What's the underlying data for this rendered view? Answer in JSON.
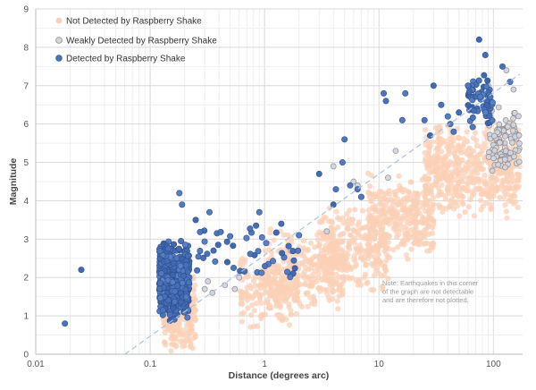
{
  "chart_data": {
    "type": "scatter",
    "xscale": "log",
    "xlim": [
      0.01,
      180
    ],
    "ylim": [
      0,
      9
    ],
    "xlabel": "Distance (degrees arc)",
    "ylabel": "Magnitude",
    "xticks": [
      {
        "value": 0.01,
        "label": "0.01"
      },
      {
        "value": 0.1,
        "label": "0.1"
      },
      {
        "value": 1,
        "label": "1"
      },
      {
        "value": 10,
        "label": "10"
      },
      {
        "value": 100,
        "label": "100"
      }
    ],
    "yticks": [
      0,
      1,
      2,
      3,
      4,
      5,
      6,
      7,
      8,
      9
    ],
    "grid": true,
    "legend_position": "top-left",
    "legend": [
      {
        "label": "Not Detected by Raspberry Shake",
        "color": "#fbd0b5"
      },
      {
        "label": "Weakly Detected by Raspberry Shake",
        "color": "#d4d4dc"
      },
      {
        "label": "Detected by Raspberry Shake",
        "color": "#4a72b8"
      }
    ],
    "threshold_line": {
      "style": "dashed",
      "color": "#a9c4df",
      "points": [
        [
          0.06,
          0
        ],
        [
          170,
          7.3
        ]
      ]
    },
    "annotation": "Note: Earthquakes in this corner of the graph are not detectable and are therefore not plotted.",
    "series": [
      {
        "name": "Not Detected by Raspberry Shake",
        "color": "#fbd0b5",
        "clusters": [
          {
            "x_range": [
              0.13,
              0.25
            ],
            "y_range": [
              0,
              2.2
            ],
            "count": 300
          },
          {
            "x_range": [
              0.6,
              2.0
            ],
            "y_range": [
              0.6,
              2.6
            ],
            "count": 180
          },
          {
            "x_range": [
              1.0,
              5.0
            ],
            "y_range": [
              1.0,
              3.4
            ],
            "count": 300
          },
          {
            "x_range": [
              3.0,
              12.0
            ],
            "y_range": [
              1.6,
              4.0
            ],
            "count": 280
          },
          {
            "x_range": [
              8.0,
              30.0
            ],
            "y_range": [
              2.4,
              4.8
            ],
            "count": 320
          },
          {
            "x_range": [
              25.0,
              170.0
            ],
            "y_range": [
              3.5,
              6.2
            ],
            "count": 520
          }
        ],
        "points": [
          {
            "x": 0.16,
            "y": 0.9
          },
          {
            "x": 0.19,
            "y": 0.5
          },
          {
            "x": 0.21,
            "y": 1.2
          },
          {
            "x": 2.0,
            "y": 2.8
          },
          {
            "x": 4.0,
            "y": 3.1
          },
          {
            "x": 8.0,
            "y": 3.3
          },
          {
            "x": 20.0,
            "y": 4.0
          },
          {
            "x": 60.0,
            "y": 5.0
          },
          {
            "x": 120.0,
            "y": 5.9
          }
        ]
      },
      {
        "name": "Weakly Detected by Raspberry Shake",
        "color": "#d4d4dc",
        "clusters": [
          {
            "x_range": [
              90.0,
              170.0
            ],
            "y_range": [
              4.6,
              6.5
            ],
            "count": 90
          }
        ],
        "points": [
          {
            "x": 0.3,
            "y": 1.7
          },
          {
            "x": 0.32,
            "y": 1.9
          },
          {
            "x": 0.35,
            "y": 1.6
          },
          {
            "x": 0.45,
            "y": 1.8
          },
          {
            "x": 0.55,
            "y": 1.7
          },
          {
            "x": 0.6,
            "y": 2.0
          },
          {
            "x": 1.7,
            "y": 2.7
          },
          {
            "x": 3.5,
            "y": 3.2
          },
          {
            "x": 4.0,
            "y": 4.9
          },
          {
            "x": 6.0,
            "y": 4.5
          },
          {
            "x": 6.5,
            "y": 4.4
          },
          {
            "x": 7.0,
            "y": 4.1
          },
          {
            "x": 12.0,
            "y": 4.6
          },
          {
            "x": 14.0,
            "y": 5.3
          },
          {
            "x": 90.0,
            "y": 7.0
          },
          {
            "x": 130.0,
            "y": 7.4
          },
          {
            "x": 150.0,
            "y": 6.9
          }
        ]
      },
      {
        "name": "Detected by Raspberry Shake",
        "color": "#4a72b8",
        "clusters": [
          {
            "x_range": [
              0.12,
              0.22
            ],
            "y_range": [
              0.8,
              3.0
            ],
            "count": 420
          },
          {
            "x_range": [
              0.25,
              2.0
            ],
            "y_range": [
              1.8,
              3.6
            ],
            "count": 45
          },
          {
            "x_range": [
              60.0,
              100.0
            ],
            "y_range": [
              5.9,
              7.4
            ],
            "count": 55
          }
        ],
        "points": [
          {
            "x": 0.018,
            "y": 0.8
          },
          {
            "x": 0.025,
            "y": 2.2
          },
          {
            "x": 0.18,
            "y": 4.2
          },
          {
            "x": 0.19,
            "y": 3.9
          },
          {
            "x": 0.25,
            "y": 3.5
          },
          {
            "x": 0.33,
            "y": 3.7
          },
          {
            "x": 0.9,
            "y": 3.7
          },
          {
            "x": 1.4,
            "y": 3.4
          },
          {
            "x": 2.0,
            "y": 3.1
          },
          {
            "x": 3.0,
            "y": 4.7
          },
          {
            "x": 4.0,
            "y": 3.9
          },
          {
            "x": 4.2,
            "y": 4.3
          },
          {
            "x": 4.8,
            "y": 5.0
          },
          {
            "x": 5.0,
            "y": 5.6
          },
          {
            "x": 5.6,
            "y": 4.4
          },
          {
            "x": 6.5,
            "y": 4.3
          },
          {
            "x": 7.0,
            "y": 4.1
          },
          {
            "x": 11.0,
            "y": 6.8
          },
          {
            "x": 11.5,
            "y": 6.6
          },
          {
            "x": 16.0,
            "y": 6.1
          },
          {
            "x": 17.0,
            "y": 6.8
          },
          {
            "x": 25.0,
            "y": 6.1
          },
          {
            "x": 28.0,
            "y": 5.7
          },
          {
            "x": 30.0,
            "y": 7.0
          },
          {
            "x": 35.0,
            "y": 6.5
          },
          {
            "x": 40.0,
            "y": 6.2
          },
          {
            "x": 42.0,
            "y": 6.0
          },
          {
            "x": 45.0,
            "y": 5.8
          },
          {
            "x": 50.0,
            "y": 6.3
          },
          {
            "x": 60.0,
            "y": 7.0
          },
          {
            "x": 75.0,
            "y": 8.2
          },
          {
            "x": 85.0,
            "y": 7.8
          },
          {
            "x": 120.0,
            "y": 7.5
          },
          {
            "x": 140.0,
            "y": 7.1
          }
        ]
      }
    ]
  }
}
